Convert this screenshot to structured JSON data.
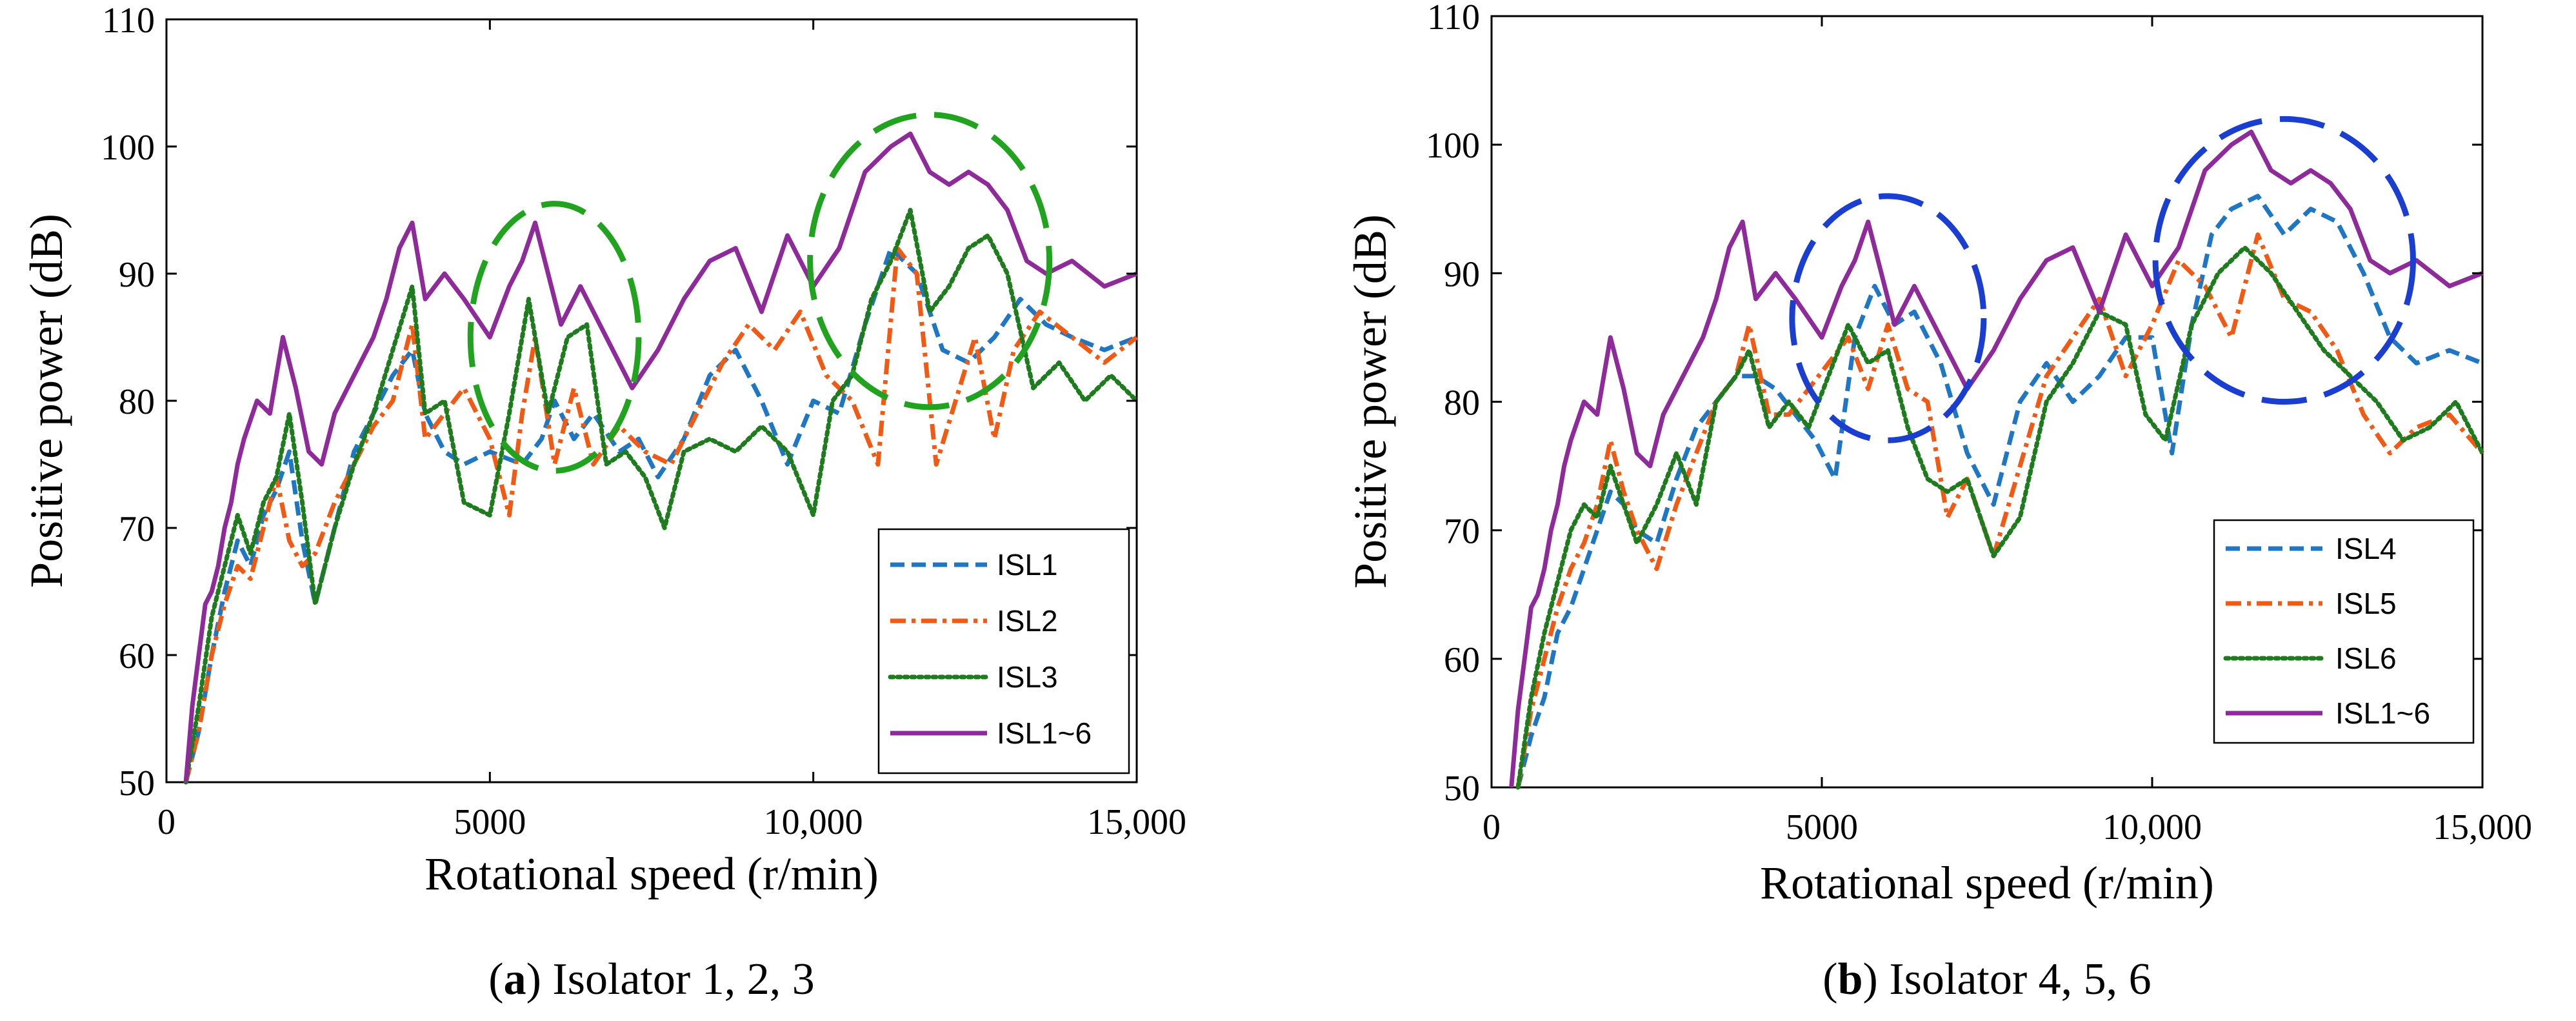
{
  "chart_data": [
    {
      "type": "line",
      "caption_letter": "a",
      "caption_rest": ") Isolator 1, 2, 3",
      "xlabel": "Rotational speed (r/min)",
      "ylabel": "Positive power (dB)",
      "xlim": [
        0,
        15000
      ],
      "ylim": [
        50,
        110
      ],
      "xticks": [
        0,
        5000,
        10000,
        15000
      ],
      "xtick_labels": [
        "0",
        "5000",
        "10,000",
        "15,000"
      ],
      "yticks": [
        50,
        60,
        70,
        80,
        90,
        100,
        110
      ],
      "ytick_labels": [
        "50",
        "60",
        "70",
        "80",
        "90",
        "100",
        "110"
      ],
      "legend_position": "bottom-right",
      "highlight_color": "#22a31f",
      "highlights": [
        {
          "cx": 6000,
          "cy": 85,
          "rx": 1300,
          "ry": 10.5
        },
        {
          "cx": 11800,
          "cy": 91,
          "rx": 1850,
          "ry": 11.5
        }
      ],
      "series": [
        {
          "name": "ISL1",
          "color": "#1f77c4",
          "dash": "dash",
          "x": [
            300,
            500,
            700,
            900,
            1100,
            1300,
            1500,
            1700,
            1900,
            2100,
            2300,
            2600,
            2900,
            3200,
            3500,
            3800,
            4000,
            4300,
            4600,
            5000,
            5500,
            5800,
            6000,
            6300,
            6600,
            7000,
            7300,
            7600,
            8000,
            8400,
            8800,
            9200,
            9600,
            10000,
            10400,
            10800,
            11200,
            11600,
            12000,
            12400,
            12800,
            13200,
            13600,
            14000,
            14500,
            15000
          ],
          "y": [
            50,
            54,
            60,
            65,
            69,
            67,
            71,
            73,
            76,
            69,
            64,
            70,
            76,
            79,
            82,
            84,
            79,
            76,
            75,
            76,
            75,
            77,
            80,
            77,
            79,
            76,
            77,
            74,
            77,
            82,
            84,
            80,
            75,
            80,
            79,
            86,
            92,
            90,
            84,
            83,
            85,
            88,
            86,
            85,
            84,
            85
          ]
        },
        {
          "name": "ISL2",
          "color": "#f05a14",
          "dash": "dashdot",
          "x": [
            300,
            500,
            700,
            900,
            1100,
            1300,
            1500,
            1700,
            1900,
            2100,
            2300,
            2600,
            2900,
            3200,
            3500,
            3800,
            4000,
            4300,
            4600,
            5000,
            5300,
            5500,
            5700,
            6000,
            6300,
            6600,
            7000,
            7400,
            7800,
            8200,
            8600,
            9000,
            9400,
            9800,
            10200,
            10600,
            11000,
            11300,
            11600,
            11900,
            12200,
            12500,
            12800,
            13100,
            13500,
            14000,
            14500,
            15000
          ],
          "y": [
            50,
            54,
            60,
            64,
            67,
            66,
            70,
            74,
            69,
            67,
            68,
            72,
            75,
            78,
            80,
            86,
            77,
            79,
            81,
            77,
            71,
            79,
            85,
            75,
            81,
            75,
            78,
            76,
            75,
            79,
            83,
            86,
            84,
            87,
            82,
            80,
            75,
            92,
            90,
            75,
            80,
            85,
            77,
            84,
            87,
            85,
            83,
            85
          ]
        },
        {
          "name": "ISL3",
          "color": "#1e7b1e",
          "dash": "dot",
          "x": [
            300,
            500,
            700,
            900,
            1100,
            1300,
            1500,
            1700,
            1900,
            2100,
            2300,
            2600,
            2900,
            3200,
            3500,
            3800,
            4000,
            4300,
            4600,
            5000,
            5300,
            5600,
            5900,
            6200,
            6500,
            6800,
            7100,
            7400,
            7700,
            8000,
            8400,
            8800,
            9200,
            9600,
            10000,
            10300,
            10600,
            10900,
            11200,
            11500,
            11800,
            12100,
            12400,
            12700,
            13000,
            13400,
            13800,
            14200,
            14600,
            15000
          ],
          "y": [
            50,
            56,
            63,
            67,
            71,
            68,
            72,
            74,
            79,
            72,
            64,
            70,
            75,
            79,
            84,
            89,
            79,
            80,
            72,
            71,
            79,
            88,
            79,
            85,
            86,
            75,
            76,
            74,
            70,
            76,
            77,
            76,
            78,
            76,
            71,
            80,
            82,
            88,
            91,
            95,
            87,
            89,
            92,
            93,
            90,
            81,
            83,
            80,
            82,
            80
          ]
        },
        {
          "name": "ISL1~6",
          "color": "#8e2a9a",
          "dash": "solid",
          "x": [
            300,
            400,
            500,
            600,
            700,
            800,
            900,
            1000,
            1100,
            1200,
            1400,
            1600,
            1800,
            2000,
            2200,
            2400,
            2600,
            2800,
            3000,
            3200,
            3400,
            3600,
            3800,
            4000,
            4300,
            4600,
            5000,
            5300,
            5500,
            5700,
            5900,
            6100,
            6400,
            6800,
            7200,
            7600,
            8000,
            8400,
            8800,
            9200,
            9600,
            10000,
            10400,
            10800,
            11200,
            11500,
            11800,
            12100,
            12400,
            12700,
            13000,
            13300,
            13600,
            14000,
            14500,
            15000
          ],
          "y": [
            50,
            56,
            60,
            64,
            65,
            67,
            70,
            72,
            75,
            77,
            80,
            79,
            85,
            81,
            76,
            75,
            79,
            81,
            83,
            85,
            88,
            92,
            94,
            88,
            90,
            88,
            85,
            89,
            91,
            94,
            90,
            86,
            89,
            85,
            81,
            84,
            88,
            91,
            92,
            87,
            93,
            89,
            92,
            98,
            100,
            101,
            98,
            97,
            98,
            97,
            95,
            91,
            90,
            91,
            89,
            90
          ]
        }
      ]
    },
    {
      "type": "line",
      "caption_letter": "b",
      "caption_rest": ") Isolator 4, 5, 6",
      "xlabel": "Rotational speed (r/min)",
      "ylabel": "Positive power (dB)",
      "xlim": [
        0,
        15000
      ],
      "ylim": [
        50,
        110
      ],
      "xticks": [
        0,
        5000,
        10000,
        15000
      ],
      "xtick_labels": [
        "0",
        "5000",
        "10,000",
        "15,000"
      ],
      "yticks": [
        50,
        60,
        70,
        80,
        90,
        100,
        110
      ],
      "ytick_labels": [
        "50",
        "60",
        "70",
        "80",
        "90",
        "100",
        "110"
      ],
      "legend_position": "bottom-right",
      "highlight_color": "#1a3fd0",
      "highlights": [
        {
          "cx": 6000,
          "cy": 86.5,
          "rx": 1450,
          "ry": 9.5
        },
        {
          "cx": 12000,
          "cy": 91,
          "rx": 1950,
          "ry": 11
        }
      ],
      "series": [
        {
          "name": "ISL4",
          "color": "#1f77c4",
          "dash": "dash",
          "x": [
            400,
            600,
            800,
            1000,
            1200,
            1400,
            1600,
            1800,
            2000,
            2200,
            2500,
            2800,
            3100,
            3400,
            3700,
            4000,
            4300,
            4600,
            4900,
            5200,
            5500,
            5800,
            6100,
            6400,
            6800,
            7200,
            7600,
            8000,
            8400,
            8800,
            9200,
            9600,
            10000,
            10300,
            10600,
            10900,
            11200,
            11600,
            12000,
            12400,
            12800,
            13200,
            13600,
            14000,
            14500,
            15000
          ],
          "y": [
            50,
            54,
            57,
            62,
            64,
            67,
            70,
            73,
            72,
            70,
            69,
            74,
            78,
            80,
            82,
            82,
            81,
            79,
            77,
            74,
            85,
            89,
            86,
            87,
            83,
            76,
            72,
            80,
            83,
            80,
            82,
            85,
            85,
            76,
            86,
            93,
            95,
            96,
            93,
            95,
            94,
            90,
            85,
            83,
            84,
            83
          ]
        },
        {
          "name": "ISL5",
          "color": "#f05a14",
          "dash": "dashdot",
          "x": [
            400,
            600,
            800,
            1000,
            1200,
            1400,
            1600,
            1800,
            2000,
            2200,
            2500,
            2800,
            3100,
            3400,
            3700,
            3900,
            4200,
            4500,
            4800,
            5100,
            5400,
            5700,
            6000,
            6300,
            6600,
            6900,
            7200,
            7600,
            8000,
            8400,
            8800,
            9200,
            9600,
            10000,
            10400,
            10800,
            11200,
            11600,
            12000,
            12400,
            12800,
            13200,
            13600,
            14000,
            14500,
            15000
          ],
          "y": [
            50,
            56,
            60,
            64,
            67,
            69,
            72,
            77,
            73,
            70,
            67,
            72,
            76,
            80,
            82,
            86,
            79,
            79,
            81,
            83,
            85,
            81,
            86,
            81,
            80,
            71,
            74,
            68,
            75,
            82,
            85,
            88,
            82,
            86,
            91,
            89,
            85,
            93,
            88,
            87,
            84,
            79,
            76,
            78,
            79,
            76
          ]
        },
        {
          "name": "ISL6",
          "color": "#1e7b1e",
          "dash": "dot",
          "x": [
            400,
            600,
            800,
            1000,
            1200,
            1400,
            1600,
            1800,
            2000,
            2200,
            2500,
            2800,
            3100,
            3400,
            3700,
            3900,
            4200,
            4500,
            4800,
            5100,
            5400,
            5700,
            6000,
            6300,
            6600,
            6900,
            7200,
            7600,
            8000,
            8400,
            8800,
            9200,
            9600,
            9900,
            10200,
            10600,
            11000,
            11400,
            11800,
            12200,
            12600,
            13000,
            13400,
            13800,
            14200,
            14600,
            15000
          ],
          "y": [
            50,
            57,
            62,
            66,
            70,
            72,
            71,
            75,
            72,
            69,
            72,
            76,
            72,
            80,
            82,
            84,
            78,
            80,
            78,
            82,
            86,
            83,
            84,
            78,
            74,
            73,
            74,
            68,
            71,
            80,
            83,
            87,
            86,
            79,
            77,
            86,
            90,
            92,
            90,
            87,
            84,
            82,
            80,
            77,
            78,
            80,
            76
          ]
        },
        {
          "name": "ISL1~6",
          "color": "#8e2a9a",
          "dash": "solid",
          "x": [
            300,
            400,
            500,
            600,
            700,
            800,
            900,
            1000,
            1100,
            1200,
            1400,
            1600,
            1800,
            2000,
            2200,
            2400,
            2600,
            2800,
            3000,
            3200,
            3400,
            3600,
            3800,
            4000,
            4300,
            4600,
            5000,
            5300,
            5500,
            5700,
            5900,
            6100,
            6400,
            6800,
            7200,
            7600,
            8000,
            8400,
            8800,
            9200,
            9600,
            10000,
            10400,
            10800,
            11200,
            11500,
            11800,
            12100,
            12400,
            12700,
            13000,
            13300,
            13600,
            14000,
            14500,
            15000
          ],
          "y": [
            50,
            56,
            60,
            64,
            65,
            67,
            70,
            72,
            75,
            77,
            80,
            79,
            85,
            81,
            76,
            75,
            79,
            81,
            83,
            85,
            88,
            92,
            94,
            88,
            90,
            88,
            85,
            89,
            91,
            94,
            90,
            86,
            89,
            85,
            81,
            84,
            88,
            91,
            92,
            87,
            93,
            89,
            92,
            98,
            100,
            101,
            98,
            97,
            98,
            97,
            95,
            91,
            90,
            91,
            89,
            90
          ]
        }
      ]
    }
  ]
}
